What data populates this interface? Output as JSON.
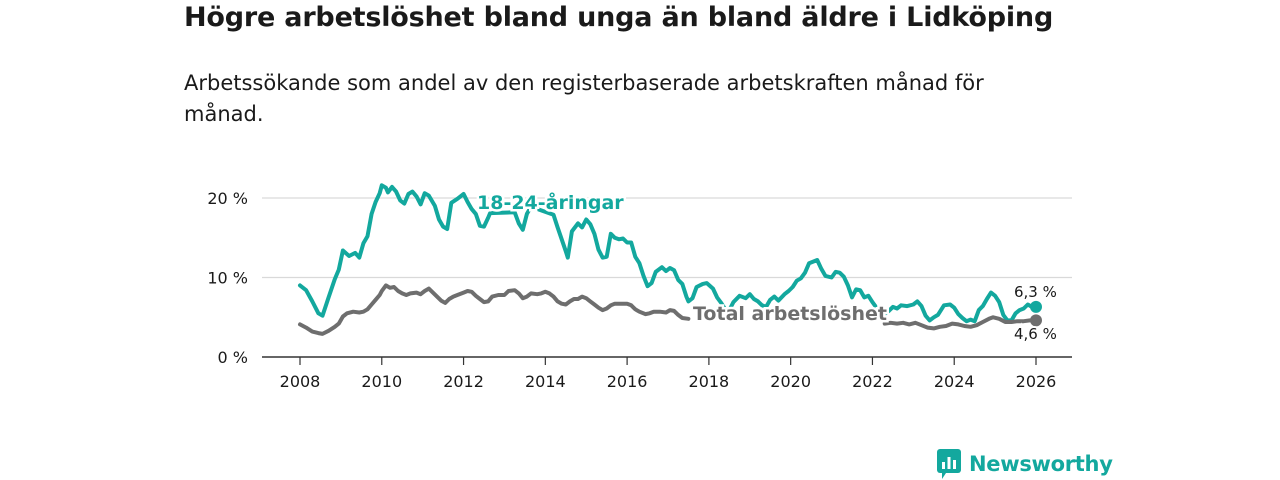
{
  "title": "Högre arbetslöshet bland unga än bland äldre i Lidköping",
  "subtitle": "Arbetssökande som andel av den registerbaserade arbetskraften månad för månad.",
  "brand": {
    "name": "Newsworthy",
    "icon": "newsworthy-logo-icon"
  },
  "colors": {
    "youth": "#13a89e",
    "total": "#6e6e6e",
    "grid": "#d9d9d9",
    "text": "#1a1a1a"
  },
  "chart_data": {
    "type": "line",
    "title": "Högre arbetslöshet bland unga än bland äldre i Lidköping",
    "xlabel": "",
    "ylabel": "",
    "xlim": [
      2007.5,
      2026.5
    ],
    "ylim": [
      0,
      20
    ],
    "x_ticks": [
      2008,
      2010,
      2012,
      2014,
      2016,
      2018,
      2020,
      2022,
      2024,
      2026
    ],
    "y_ticks": [
      {
        "value": 0,
        "label": "0 %"
      },
      {
        "value": 10,
        "label": "10 %"
      },
      {
        "value": 20,
        "label": "20 %"
      }
    ],
    "grid": true,
    "legend": "inline labels",
    "series": [
      {
        "name": "18-24-åringar",
        "label_position": "upper-middle",
        "end_value": 6.3,
        "end_label": "6,3 %",
        "points": [
          [
            2008.0,
            9.0
          ],
          [
            2008.15,
            8.4
          ],
          [
            2008.3,
            7.0
          ],
          [
            2008.45,
            5.5
          ],
          [
            2008.55,
            5.2
          ],
          [
            2008.7,
            7.5
          ],
          [
            2008.85,
            9.8
          ],
          [
            2008.95,
            11.0
          ],
          [
            2009.05,
            13.4
          ],
          [
            2009.2,
            12.7
          ],
          [
            2009.35,
            13.1
          ],
          [
            2009.45,
            12.5
          ],
          [
            2009.55,
            14.3
          ],
          [
            2009.65,
            15.2
          ],
          [
            2009.75,
            18.0
          ],
          [
            2009.85,
            19.5
          ],
          [
            2009.95,
            20.6
          ],
          [
            2010.0,
            21.6
          ],
          [
            2010.1,
            21.3
          ],
          [
            2010.15,
            20.7
          ],
          [
            2010.25,
            21.4
          ],
          [
            2010.35,
            20.8
          ],
          [
            2010.45,
            19.7
          ],
          [
            2010.55,
            19.3
          ],
          [
            2010.65,
            20.5
          ],
          [
            2010.75,
            20.8
          ],
          [
            2010.85,
            20.2
          ],
          [
            2010.95,
            19.2
          ],
          [
            2011.05,
            20.6
          ],
          [
            2011.15,
            20.3
          ],
          [
            2011.3,
            19.0
          ],
          [
            2011.4,
            17.3
          ],
          [
            2011.5,
            16.4
          ],
          [
            2011.6,
            16.1
          ],
          [
            2011.7,
            19.4
          ],
          [
            2011.85,
            19.9
          ],
          [
            2012.0,
            20.5
          ],
          [
            2012.1,
            19.5
          ],
          [
            2012.2,
            18.6
          ],
          [
            2012.3,
            18.0
          ],
          [
            2012.4,
            16.5
          ],
          [
            2012.5,
            16.4
          ],
          [
            2012.6,
            17.5
          ],
          [
            2012.65,
            18.1
          ],
          [
            2013.25,
            18.2
          ],
          [
            2013.35,
            16.8
          ],
          [
            2013.45,
            16.0
          ],
          [
            2013.55,
            18.0
          ],
          [
            2013.65,
            18.9
          ],
          [
            2014.2,
            17.9
          ],
          [
            2014.3,
            16.3
          ],
          [
            2014.4,
            14.8
          ],
          [
            2014.5,
            13.3
          ],
          [
            2014.55,
            12.5
          ],
          [
            2014.65,
            15.8
          ],
          [
            2014.8,
            16.8
          ],
          [
            2014.9,
            16.3
          ],
          [
            2015.0,
            17.3
          ],
          [
            2015.1,
            16.7
          ],
          [
            2015.2,
            15.5
          ],
          [
            2015.3,
            13.5
          ],
          [
            2015.4,
            12.5
          ],
          [
            2015.5,
            12.6
          ],
          [
            2015.6,
            15.5
          ],
          [
            2015.7,
            15.0
          ],
          [
            2015.8,
            14.8
          ],
          [
            2015.9,
            14.9
          ],
          [
            2016.0,
            14.4
          ],
          [
            2016.1,
            14.4
          ],
          [
            2016.2,
            12.6
          ],
          [
            2016.3,
            11.8
          ],
          [
            2016.4,
            10.2
          ],
          [
            2016.5,
            8.9
          ],
          [
            2016.6,
            9.3
          ],
          [
            2016.7,
            10.7
          ],
          [
            2016.85,
            11.3
          ],
          [
            2016.95,
            10.8
          ],
          [
            2017.05,
            11.2
          ],
          [
            2017.15,
            10.9
          ],
          [
            2017.25,
            9.7
          ],
          [
            2017.35,
            9.2
          ],
          [
            2017.45,
            7.6
          ],
          [
            2017.5,
            7.0
          ],
          [
            2017.6,
            7.4
          ],
          [
            2017.7,
            8.8
          ],
          [
            2017.85,
            9.2
          ],
          [
            2017.95,
            9.3
          ],
          [
            2018.1,
            8.6
          ],
          [
            2018.2,
            7.5
          ],
          [
            2018.3,
            6.8
          ],
          [
            2018.4,
            6.0
          ],
          [
            2018.5,
            5.9
          ],
          [
            2018.6,
            6.9
          ],
          [
            2018.75,
            7.7
          ],
          [
            2018.9,
            7.4
          ],
          [
            2019.0,
            7.9
          ],
          [
            2019.1,
            7.3
          ],
          [
            2019.2,
            7.0
          ],
          [
            2019.3,
            6.5
          ],
          [
            2019.4,
            6.3
          ],
          [
            2019.5,
            7.2
          ],
          [
            2019.6,
            7.6
          ],
          [
            2019.7,
            7.1
          ],
          [
            2019.85,
            7.9
          ],
          [
            2019.95,
            8.3
          ],
          [
            2020.05,
            8.8
          ],
          [
            2020.15,
            9.6
          ],
          [
            2020.25,
            9.9
          ],
          [
            2020.35,
            10.6
          ],
          [
            2020.45,
            11.8
          ],
          [
            2020.55,
            12.0
          ],
          [
            2020.65,
            12.2
          ],
          [
            2020.75,
            11.1
          ],
          [
            2020.85,
            10.2
          ],
          [
            2021.0,
            10.0
          ],
          [
            2021.1,
            10.7
          ],
          [
            2021.2,
            10.6
          ],
          [
            2021.3,
            10.1
          ],
          [
            2021.4,
            9.0
          ],
          [
            2021.5,
            7.5
          ],
          [
            2021.6,
            8.5
          ],
          [
            2021.7,
            8.4
          ],
          [
            2021.8,
            7.5
          ],
          [
            2021.9,
            7.7
          ],
          [
            2022.0,
            6.9
          ],
          [
            2022.1,
            6.2
          ],
          [
            2022.2,
            5.6
          ],
          [
            2022.3,
            5.4
          ],
          [
            2022.4,
            5.8
          ],
          [
            2022.5,
            6.3
          ],
          [
            2022.6,
            6.1
          ],
          [
            2022.7,
            6.5
          ],
          [
            2022.85,
            6.4
          ],
          [
            2023.0,
            6.6
          ],
          [
            2023.1,
            7.0
          ],
          [
            2023.2,
            6.4
          ],
          [
            2023.3,
            5.2
          ],
          [
            2023.4,
            4.6
          ],
          [
            2023.5,
            5.0
          ],
          [
            2023.6,
            5.3
          ],
          [
            2023.75,
            6.5
          ],
          [
            2023.9,
            6.6
          ],
          [
            2024.0,
            6.2
          ],
          [
            2024.1,
            5.4
          ],
          [
            2024.2,
            4.9
          ],
          [
            2024.3,
            4.5
          ],
          [
            2024.4,
            4.7
          ],
          [
            2024.5,
            4.5
          ],
          [
            2024.6,
            5.9
          ],
          [
            2024.7,
            6.4
          ],
          [
            2024.8,
            7.3
          ],
          [
            2024.9,
            8.1
          ],
          [
            2025.0,
            7.7
          ],
          [
            2025.1,
            6.9
          ],
          [
            2025.2,
            5.3
          ],
          [
            2025.3,
            4.6
          ],
          [
            2025.4,
            4.6
          ],
          [
            2025.5,
            5.5
          ],
          [
            2025.6,
            5.9
          ],
          [
            2025.7,
            6.1
          ],
          [
            2025.8,
            6.6
          ],
          [
            2025.9,
            6.3
          ],
          [
            2026.0,
            6.3
          ]
        ]
      },
      {
        "name": "Total arbetslöshet",
        "label_position": "lower-right",
        "end_value": 4.6,
        "end_label": "4,6 %",
        "points": [
          [
            2008.0,
            4.1
          ],
          [
            2008.15,
            3.7
          ],
          [
            2008.3,
            3.2
          ],
          [
            2008.45,
            3.0
          ],
          [
            2008.55,
            2.9
          ],
          [
            2008.7,
            3.3
          ],
          [
            2008.85,
            3.8
          ],
          [
            2008.95,
            4.2
          ],
          [
            2009.05,
            5.1
          ],
          [
            2009.15,
            5.5
          ],
          [
            2009.3,
            5.7
          ],
          [
            2009.45,
            5.6
          ],
          [
            2009.55,
            5.7
          ],
          [
            2009.65,
            6.0
          ],
          [
            2009.75,
            6.6
          ],
          [
            2009.85,
            7.2
          ],
          [
            2009.95,
            7.8
          ],
          [
            2010.0,
            8.3
          ],
          [
            2010.1,
            9.0
          ],
          [
            2010.2,
            8.7
          ],
          [
            2010.3,
            8.8
          ],
          [
            2010.4,
            8.3
          ],
          [
            2010.5,
            8.0
          ],
          [
            2010.6,
            7.8
          ],
          [
            2010.7,
            8.0
          ],
          [
            2010.85,
            8.1
          ],
          [
            2010.95,
            7.9
          ],
          [
            2011.05,
            8.3
          ],
          [
            2011.15,
            8.6
          ],
          [
            2011.25,
            8.1
          ],
          [
            2011.35,
            7.6
          ],
          [
            2011.45,
            7.1
          ],
          [
            2011.55,
            6.8
          ],
          [
            2011.65,
            7.3
          ],
          [
            2011.75,
            7.6
          ],
          [
            2011.85,
            7.8
          ],
          [
            2012.0,
            8.1
          ],
          [
            2012.1,
            8.3
          ],
          [
            2012.2,
            8.2
          ],
          [
            2012.3,
            7.7
          ],
          [
            2012.4,
            7.3
          ],
          [
            2012.5,
            6.9
          ],
          [
            2012.6,
            7.0
          ],
          [
            2012.7,
            7.6
          ],
          [
            2012.85,
            7.8
          ],
          [
            2013.0,
            7.8
          ],
          [
            2013.1,
            8.3
          ],
          [
            2013.25,
            8.4
          ],
          [
            2013.35,
            8.0
          ],
          [
            2013.45,
            7.4
          ],
          [
            2013.55,
            7.6
          ],
          [
            2013.65,
            8.0
          ],
          [
            2013.8,
            7.9
          ],
          [
            2013.9,
            8.0
          ],
          [
            2014.0,
            8.2
          ],
          [
            2014.1,
            8.0
          ],
          [
            2014.2,
            7.6
          ],
          [
            2014.3,
            7.0
          ],
          [
            2014.4,
            6.7
          ],
          [
            2014.5,
            6.6
          ],
          [
            2014.6,
            7.0
          ],
          [
            2014.7,
            7.3
          ],
          [
            2014.8,
            7.3
          ],
          [
            2014.9,
            7.6
          ],
          [
            2015.0,
            7.4
          ],
          [
            2015.1,
            7.0
          ],
          [
            2015.2,
            6.6
          ],
          [
            2015.3,
            6.2
          ],
          [
            2015.4,
            5.9
          ],
          [
            2015.5,
            6.1
          ],
          [
            2015.6,
            6.5
          ],
          [
            2015.7,
            6.7
          ],
          [
            2015.85,
            6.7
          ],
          [
            2016.0,
            6.7
          ],
          [
            2016.1,
            6.5
          ],
          [
            2016.2,
            6.0
          ],
          [
            2016.3,
            5.7
          ],
          [
            2016.45,
            5.4
          ],
          [
            2016.55,
            5.5
          ],
          [
            2016.65,
            5.7
          ],
          [
            2016.8,
            5.7
          ],
          [
            2016.95,
            5.6
          ],
          [
            2017.05,
            5.9
          ],
          [
            2017.15,
            5.8
          ],
          [
            2017.25,
            5.3
          ],
          [
            2017.35,
            4.9
          ],
          [
            2017.5,
            4.8
          ]
        ]
      }
    ]
  }
}
